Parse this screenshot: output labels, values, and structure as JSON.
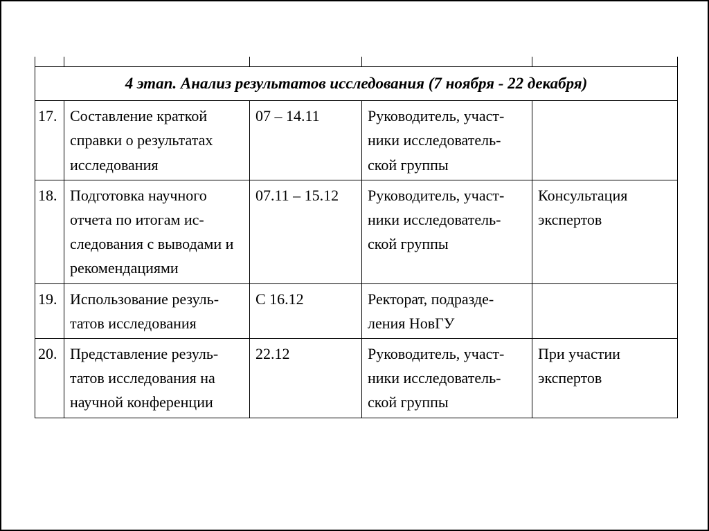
{
  "table": {
    "header": "4 этап. Анализ результатов исследования (7 ноября - 22 декабря)",
    "columns": {
      "num_width": 42,
      "task_width": 268,
      "date_width": 162,
      "resp_width": 246,
      "note_width": 210
    },
    "rows": [
      {
        "num": "17.",
        "task": "Составление краткой справки о результатах исследования",
        "date": "07 – 14.11",
        "resp": "Руководитель, участ-ники исследователь-ской группы",
        "note": ""
      },
      {
        "num": "18.",
        "task": "Подготовка научного отчета по итогам ис-следования с выводами и рекомендациями",
        "date": "07.11 – 15.12",
        "resp": "Руководитель, участ-ники исследователь-ской группы",
        "note": "Консультация экспертов"
      },
      {
        "num": "19.",
        "task": "Использование резуль-татов исследования",
        "date": "С 16.12",
        "resp": "Ректорат, подразде-ления НовГУ",
        "note": ""
      },
      {
        "num": "20.",
        "task": "Представление резуль-татов исследования на научной конференции",
        "date": "22.12",
        "resp": "Руководитель, участ-ники исследователь-ской группы",
        "note": "При участии экспертов"
      }
    ],
    "styling": {
      "border_color": "#000000",
      "background_color": "#ffffff",
      "text_color": "#000000",
      "font_family": "Times New Roman",
      "cell_fontsize": 22,
      "header_fontsize": 23,
      "line_height": 1.6
    }
  }
}
